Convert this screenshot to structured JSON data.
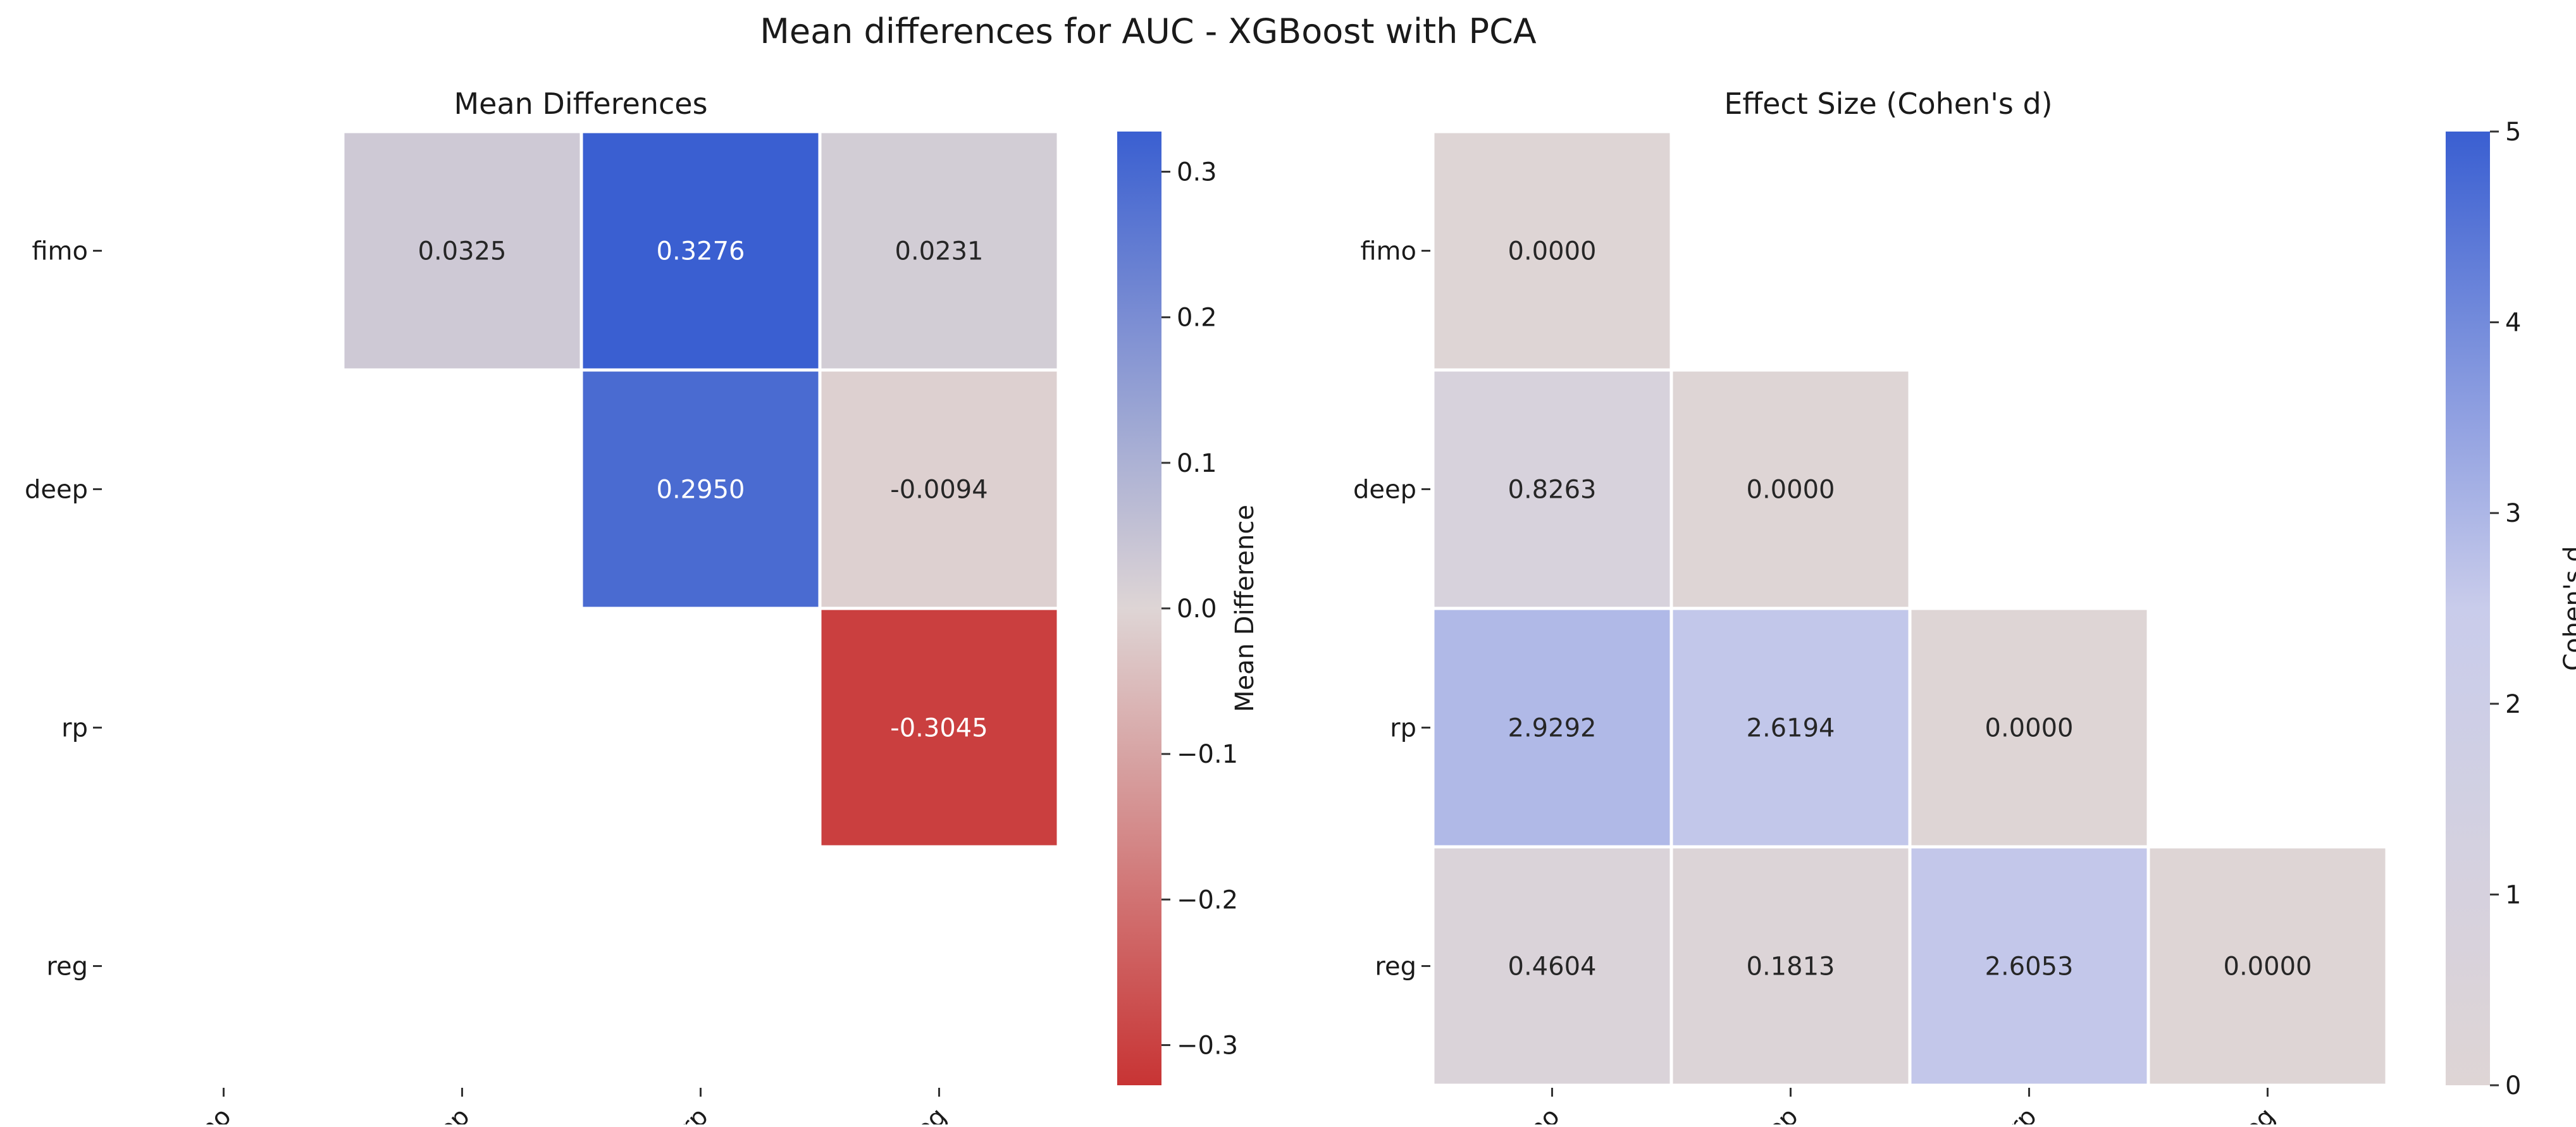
{
  "figure": {
    "title": "Mean differences for AUC - XGBoost with PCA"
  },
  "chart_data": [
    {
      "type": "heatmap",
      "title": "Mean Differences",
      "row_labels": [
        "fimo",
        "deep",
        "rp",
        "reg"
      ],
      "col_labels": [
        "fimo",
        "deep",
        "rp",
        "reg"
      ],
      "values": [
        [
          null,
          0.0325,
          0.3276,
          0.0231
        ],
        [
          null,
          null,
          0.295,
          -0.0094
        ],
        [
          null,
          null,
          null,
          -0.3045
        ],
        [
          null,
          null,
          null,
          null
        ]
      ],
      "cell_labels": [
        [
          null,
          "0.0325",
          "0.3276",
          "0.0231"
        ],
        [
          null,
          null,
          "0.2950",
          "-0.0094"
        ],
        [
          null,
          null,
          null,
          "-0.3045"
        ],
        [
          null,
          null,
          null,
          null
        ]
      ],
      "colorbar": {
        "label": "Mean Difference",
        "vmin": -0.3276,
        "vmax": 0.3276,
        "ticks": [
          0.3,
          0.2,
          0.1,
          0.0,
          -0.1,
          -0.2,
          -0.3
        ],
        "tick_labels": [
          "0.3",
          "0.2",
          "0.1",
          "0.0",
          "−0.1",
          "−0.2",
          "−0.3"
        ]
      },
      "colormap": {
        "low": "#c83434",
        "mid": "#ded5d5",
        "high": "#3a5fd1"
      }
    },
    {
      "type": "heatmap",
      "title": "Effect Size (Cohen's d)",
      "row_labels": [
        "fimo",
        "deep",
        "rp",
        "reg"
      ],
      "col_labels": [
        "fimo",
        "deep",
        "rp",
        "reg"
      ],
      "values": [
        [
          0.0,
          null,
          null,
          null
        ],
        [
          0.8263,
          0.0,
          null,
          null
        ],
        [
          2.9292,
          2.6194,
          0.0,
          null
        ],
        [
          0.4604,
          0.1813,
          2.6053,
          0.0
        ]
      ],
      "cell_labels": [
        [
          "0.0000",
          null,
          null,
          null
        ],
        [
          "0.8263",
          "0.0000",
          null,
          null
        ],
        [
          "2.9292",
          "2.6194",
          "0.0000",
          null
        ],
        [
          "0.4604",
          "0.1813",
          "2.6053",
          "0.0000"
        ]
      ],
      "colorbar": {
        "label": "Cohen's d",
        "vmin": 0,
        "vmax": 5,
        "ticks": [
          5,
          4,
          3,
          2,
          1,
          0
        ],
        "tick_labels": [
          "5",
          "4",
          "3",
          "2",
          "1",
          "0"
        ]
      },
      "colormap": {
        "low": "#ded5d5",
        "mid": "#c9cceb",
        "high": "#3a5fd1"
      }
    }
  ]
}
